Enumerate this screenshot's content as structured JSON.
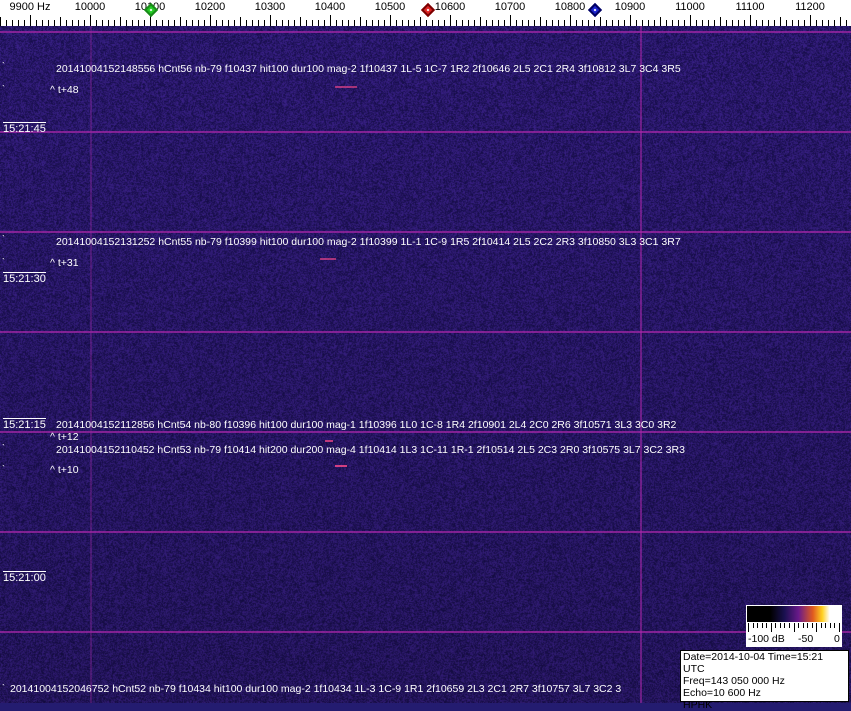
{
  "axis": {
    "unit_label": "9900 Hz",
    "freq_labels": [
      "10000",
      "10100",
      "10200",
      "10300",
      "10400",
      "10500",
      "10600",
      "10700",
      "10800",
      "10900",
      "11000",
      "11100",
      "11200"
    ],
    "markers": [
      {
        "name": "green-marker",
        "color": "#22cc22"
      },
      {
        "name": "red-marker",
        "color": "#dd2222"
      },
      {
        "name": "blue-marker",
        "color": "#1a22cc"
      }
    ]
  },
  "colors": {
    "background": "#241c70",
    "grid_line": "#aa28aa",
    "text": "#ffffff"
  },
  "time_labels": [
    "15:21:45",
    "15:21:30",
    "15:21:15",
    "15:21:00"
  ],
  "events": [
    {
      "line": "20141004152148556 hCnt56 nb-79 f10437 hit100 dur100 mag-2 1f10437 1L-5 1C-7 1R2 2f10646 2L5 2C1 2R4 3f10812 3L7 3C4 3R5",
      "offset": "^ t+48"
    },
    {
      "line": "20141004152131252 hCnt55 nb-79 f10399 hit100 dur100 mag-2 1f10399 1L-1 1C-9 1R5 2f10414 2L5 2C2 2R3 3f10850 3L3 3C1 3R7",
      "offset": "^ t+31"
    },
    {
      "line": "20141004152112856 hCnt54 nb-80 f10396 hit100 dur100 mag-1 1f10396 1L0 1C-8 1R4 2f10901 2L4 2C0 2R6 3f10571 3L3 3C0 3R2",
      "offset": "^ t+12"
    },
    {
      "line": "20141004152110452 hCnt53 nb-79 f10414 hit200 dur200 mag-4 1f10414 1L3 1C-11 1R-1 2f10514 2L5 2C3 2R0 3f10575 3L7 3C2 3R3",
      "offset": "^ t+10"
    },
    {
      "line": "20141004152046752 hCnt52 nb-79 f10434 hit100 dur100 mag-2 1f10434 1L-3 1C-9 1R1 2f10659 2L3 2C1 2R7 3f10757 3L7 3C2 3",
      "offset": ""
    }
  ],
  "scale": {
    "labels": [
      "-100 dB",
      "-50",
      "0"
    ]
  },
  "info": {
    "date_time": "Date=2014-10-04 Time=15:21 UTC",
    "freq": "Freq=143 050 000 Hz",
    "echo": "Echo=10 600 Hz",
    "station": "HPHK"
  }
}
